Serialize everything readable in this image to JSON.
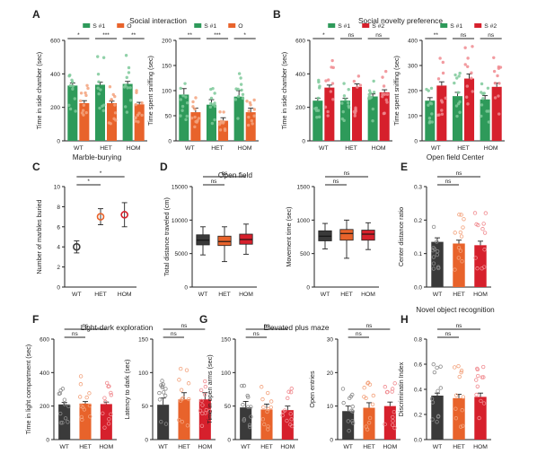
{
  "colors": {
    "green": "#2e9a5a",
    "orange": "#e8632b",
    "red": "#d6202c",
    "dark": "#3a3a3a",
    "green_dot": "#7ec99a",
    "orange_dot": "#f3a27c",
    "red_dot": "#f08a8f",
    "dark_dot": "#8a8a8a"
  },
  "chart_data": [
    {
      "id": "A1",
      "letter": "A",
      "type": "bar",
      "group_title": "Social interaction",
      "ylabel": "Time in side chamber (sec)",
      "ylim": [
        0,
        600
      ],
      "yticks": [
        0,
        200,
        400,
        600
      ],
      "categories": [
        "WT",
        "HET",
        "HOM"
      ],
      "series": [
        {
          "name": "S #1",
          "color": "green",
          "values": [
            330,
            335,
            340
          ],
          "errors": [
            15,
            15,
            15
          ]
        },
        {
          "name": "O",
          "color": "orange",
          "values": [
            225,
            225,
            218
          ],
          "errors": [
            15,
            12,
            12
          ]
        }
      ],
      "significance": [
        "*",
        "***",
        "**"
      ]
    },
    {
      "id": "A2",
      "type": "bar",
      "ylabel": "Time spent sniffing (sec)",
      "ylim": [
        0,
        200
      ],
      "yticks": [
        0,
        50,
        100,
        150,
        200
      ],
      "categories": [
        "WT",
        "HET",
        "HOM"
      ],
      "series": [
        {
          "name": "S #1",
          "color": "green",
          "values": [
            92,
            72,
            88
          ],
          "errors": [
            12,
            10,
            12
          ]
        },
        {
          "name": "O",
          "color": "orange",
          "values": [
            57,
            40,
            57
          ],
          "errors": [
            8,
            6,
            8
          ]
        }
      ],
      "significance": [
        "**",
        "***",
        "*"
      ]
    },
    {
      "id": "B1",
      "letter": "B",
      "type": "bar",
      "group_title": "Social novelty preference",
      "ylabel": "Time in side chamber (sec)",
      "ylim": [
        0,
        600
      ],
      "yticks": [
        0,
        200,
        400,
        600
      ],
      "categories": [
        "WT",
        "HET",
        "HOM"
      ],
      "series": [
        {
          "name": "S #1",
          "color": "green",
          "values": [
            240,
            240,
            265
          ],
          "errors": [
            15,
            15,
            15
          ]
        },
        {
          "name": "S #2",
          "color": "red",
          "values": [
            318,
            322,
            290
          ],
          "errors": [
            15,
            18,
            15
          ]
        }
      ],
      "significance": [
        "*",
        "ns",
        "ns"
      ]
    },
    {
      "id": "B2",
      "type": "bar",
      "ylabel": "Time spent sniffing (sec)",
      "ylim": [
        0,
        400
      ],
      "yticks": [
        0,
        100,
        200,
        300,
        400
      ],
      "categories": [
        "WT",
        "HET",
        "HOM"
      ],
      "series": [
        {
          "name": "S #1",
          "color": "green",
          "values": [
            160,
            178,
            165
          ],
          "errors": [
            12,
            15,
            15
          ]
        },
        {
          "name": "S #2",
          "color": "red",
          "values": [
            220,
            248,
            215
          ],
          "errors": [
            15,
            18,
            15
          ]
        }
      ],
      "significance": [
        "**",
        "ns",
        "ns"
      ]
    },
    {
      "id": "C",
      "letter": "C",
      "type": "scatter",
      "title": "Marble-burying",
      "ylabel": "Number of marbles buried",
      "ylim": [
        0,
        10
      ],
      "yticks": [
        0,
        2,
        4,
        6,
        8,
        10
      ],
      "categories": [
        "WT",
        "HET",
        "HOM"
      ],
      "values": [
        4.0,
        7.0,
        7.2
      ],
      "errors": [
        0.6,
        0.8,
        1.2
      ],
      "colors": [
        "dark",
        "orange",
        "red"
      ],
      "comparisons": [
        {
          "from": 0,
          "to": 1,
          "label": "*"
        },
        {
          "from": 0,
          "to": 2,
          "label": "*"
        }
      ]
    },
    {
      "id": "D1",
      "letter": "D",
      "type": "boxplot",
      "group_title": "Open field",
      "ylabel": "Total distance traveled (cm)",
      "ylim": [
        0,
        15000
      ],
      "yticks": [
        0,
        5000,
        10000,
        15000
      ],
      "categories": [
        "WT",
        "HET",
        "HOM"
      ],
      "boxes": [
        [
          4800,
          6300,
          7000,
          7800,
          9000
        ],
        [
          3800,
          6200,
          6800,
          7600,
          9000
        ],
        [
          4900,
          6400,
          7100,
          7900,
          9400
        ]
      ],
      "colors": [
        "dark",
        "orange",
        "red"
      ],
      "comparisons": [
        {
          "from": 0,
          "to": 1,
          "label": "ns"
        },
        {
          "from": 0,
          "to": 2,
          "label": "ns"
        }
      ]
    },
    {
      "id": "D2",
      "type": "boxplot",
      "ylabel": "Movement time (sec)",
      "ylim": [
        0,
        1500
      ],
      "yticks": [
        0,
        500,
        1000,
        1500
      ],
      "categories": [
        "WT",
        "HET",
        "HOM"
      ],
      "boxes": [
        [
          570,
          690,
          760,
          840,
          950
        ],
        [
          430,
          700,
          800,
          860,
          1000
        ],
        [
          560,
          700,
          790,
          850,
          960
        ]
      ],
      "colors": [
        "dark",
        "orange",
        "red"
      ],
      "comparisons": [
        {
          "from": 0,
          "to": 1,
          "label": "ns"
        },
        {
          "from": 0,
          "to": 2,
          "label": "ns"
        }
      ]
    },
    {
      "id": "E",
      "letter": "E",
      "type": "bar",
      "title": "Open field Center",
      "ylabel": "Center distance ratio",
      "ylim": [
        0,
        0.3
      ],
      "yticks": [
        0.0,
        0.1,
        0.2,
        0.3
      ],
      "categories": [
        "WT",
        "HET",
        "HOM"
      ],
      "values": [
        0.135,
        0.13,
        0.125
      ],
      "errors": [
        0.012,
        0.01,
        0.012
      ],
      "colors": [
        "dark",
        "orange",
        "red"
      ],
      "comparisons": [
        {
          "from": 0,
          "to": 1,
          "label": "ns"
        },
        {
          "from": 0,
          "to": 2,
          "label": "ns"
        }
      ]
    },
    {
      "id": "F1",
      "letter": "F",
      "type": "bar",
      "group_title": "Light-dark exploration",
      "ylabel": "Time in light compartment (sec)",
      "ylim": [
        0,
        600
      ],
      "yticks": [
        0,
        200,
        400,
        600
      ],
      "categories": [
        "WT",
        "HET",
        "HOM"
      ],
      "values": [
        210,
        215,
        212
      ],
      "errors": [
        12,
        12,
        12
      ],
      "colors": [
        "dark",
        "orange",
        "red"
      ],
      "comparisons": [
        {
          "from": 0,
          "to": 1,
          "label": "ns"
        },
        {
          "from": 0,
          "to": 2,
          "label": "ns"
        }
      ]
    },
    {
      "id": "F2",
      "type": "bar",
      "ylabel": "Latency to dark (sec)",
      "ylim": [
        0,
        150
      ],
      "yticks": [
        0,
        50,
        100,
        150
      ],
      "categories": [
        "WT",
        "HET",
        "HOM"
      ],
      "values": [
        52,
        60,
        60
      ],
      "errors": [
        10,
        10,
        10
      ],
      "colors": [
        "dark",
        "orange",
        "red"
      ],
      "comparisons": [
        {
          "from": 0,
          "to": 1,
          "label": "ns"
        },
        {
          "from": 0,
          "to": 2,
          "label": "ns"
        }
      ]
    },
    {
      "id": "G1",
      "letter": "G",
      "type": "bar",
      "group_title": "Elevated plus maze",
      "ylabel": "Time in open arms (sec)",
      "ylim": [
        0,
        150
      ],
      "yticks": [
        0,
        50,
        100,
        150
      ],
      "categories": [
        "WT",
        "HET",
        "HOM"
      ],
      "values": [
        48,
        45,
        44
      ],
      "errors": [
        9,
        8,
        6
      ],
      "colors": [
        "dark",
        "orange",
        "red"
      ],
      "comparisons": [
        {
          "from": 0,
          "to": 1,
          "label": "ns"
        },
        {
          "from": 0,
          "to": 2,
          "label": "ns"
        }
      ]
    },
    {
      "id": "G2",
      "type": "bar",
      "ylabel": "Open entries",
      "ylim": [
        0,
        30
      ],
      "yticks": [
        0,
        10,
        20,
        30
      ],
      "categories": [
        "WT",
        "HET",
        "HOM"
      ],
      "values": [
        8.5,
        9.5,
        10.0
      ],
      "errors": [
        1.5,
        1.5,
        1.2
      ],
      "colors": [
        "dark",
        "orange",
        "red"
      ],
      "comparisons": [
        {
          "from": 0,
          "to": 1,
          "label": "ns"
        },
        {
          "from": 0,
          "to": 2,
          "label": "ns"
        }
      ]
    },
    {
      "id": "H",
      "letter": "H",
      "type": "bar",
      "title": "Novel object recognition",
      "ylabel": "Discriminatin Index",
      "ylim": [
        0,
        0.8
      ],
      "yticks": [
        0.0,
        0.2,
        0.4,
        0.6,
        0.8
      ],
      "categories": [
        "WT",
        "HET",
        "HOM"
      ],
      "values": [
        0.35,
        0.33,
        0.34
      ],
      "errors": [
        0.02,
        0.03,
        0.03
      ],
      "colors": [
        "dark",
        "orange",
        "red"
      ],
      "comparisons": [
        {
          "from": 0,
          "to": 1,
          "label": "ns"
        },
        {
          "from": 0,
          "to": 2,
          "label": "ns"
        }
      ]
    }
  ]
}
